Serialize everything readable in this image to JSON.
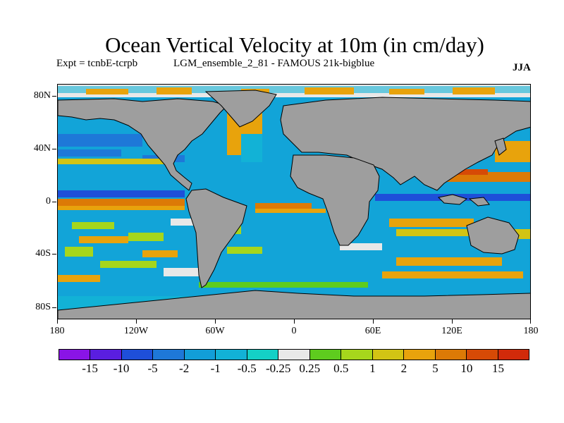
{
  "title": "Ocean Vertical Velocity at 10m (in cm/day)",
  "subtitle_left": "Expt = tcnbE-tcrpb",
  "subtitle_center": "LGM_ensemble_2_81 - FAMOUS 21k-bigblue",
  "season": "JJA",
  "lat_ticks": [
    "80N",
    "40N",
    "0",
    "40S",
    "80S"
  ],
  "lon_ticks": [
    "180",
    "120W",
    "60W",
    "0",
    "60E",
    "120E",
    "180"
  ],
  "colorbar": {
    "colors": [
      "#8a14e6",
      "#5a1ee0",
      "#1e4fd9",
      "#1e78d8",
      "#129ed8",
      "#12b2d6",
      "#14d0c6",
      "#e8e8e8",
      "#5ecc1e",
      "#a6d61c",
      "#d2c414",
      "#e8a30c",
      "#dc7a06",
      "#d64a06",
      "#d22a0a"
    ],
    "labels": [
      "-15",
      "-10",
      "-5",
      "-2",
      "-1",
      "-0.5",
      "-0.25",
      "0.25",
      "0.5",
      "1",
      "2",
      "5",
      "10",
      "15"
    ]
  }
}
